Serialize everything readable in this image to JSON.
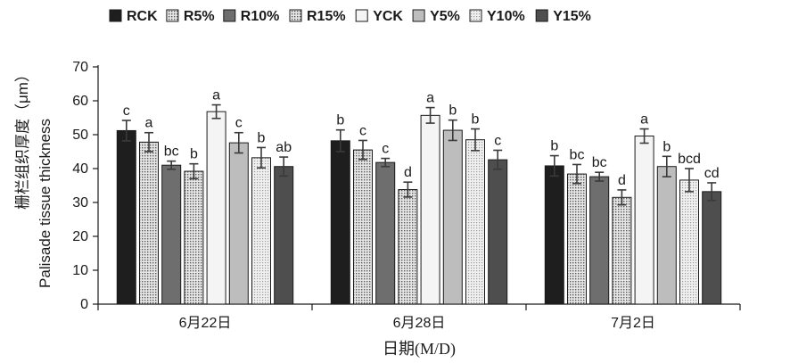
{
  "chart_data": {
    "type": "bar",
    "ylabel_cn": "栅栏组织厚度（μm）",
    "ylabel_en": "Palisade tissue thickness",
    "xlabel": "日期(M/D)",
    "categories": [
      "6月22日",
      "6月28日",
      "7月2日"
    ],
    "ylim": [
      0,
      70
    ],
    "yticks": [
      0,
      10,
      20,
      30,
      40,
      50,
      60,
      70
    ],
    "grid": false,
    "legend_position": "top",
    "series": [
      {
        "name": "RCK",
        "values": [
          51.2,
          48.2,
          40.8
        ],
        "errors": [
          3.0,
          3.2,
          3.0
        ],
        "letters": [
          "c",
          "b",
          "b"
        ],
        "fill": "#1e1e1e",
        "pattern": "solid"
      },
      {
        "name": "R5%",
        "values": [
          47.8,
          45.5,
          38.4
        ],
        "errors": [
          2.8,
          2.8,
          2.8
        ],
        "letters": [
          "a",
          "c",
          "bc"
        ],
        "fill": "#8a8a8a",
        "pattern": "dots"
      },
      {
        "name": "R10%",
        "values": [
          41.0,
          41.8,
          37.6
        ],
        "errors": [
          1.2,
          1.2,
          1.3
        ],
        "letters": [
          "bc",
          "c",
          "bc"
        ],
        "fill": "#6e6e6e",
        "pattern": "solid"
      },
      {
        "name": "R15%",
        "values": [
          39.2,
          33.8,
          31.5
        ],
        "errors": [
          2.2,
          2.2,
          2.2
        ],
        "letters": [
          "b",
          "d",
          "d"
        ],
        "fill": "#c4c4c4",
        "pattern": "dots"
      },
      {
        "name": "YCK",
        "values": [
          56.8,
          55.7,
          49.6
        ],
        "errors": [
          2.0,
          2.3,
          2.1
        ],
        "letters": [
          "a",
          "a",
          "a"
        ],
        "fill": "#f4f4f4",
        "pattern": "solid"
      },
      {
        "name": "Y5%",
        "values": [
          47.6,
          51.3,
          40.6
        ],
        "errors": [
          3.0,
          3.0,
          3.0
        ],
        "letters": [
          "c",
          "b",
          "b"
        ],
        "fill": "#bdbdbd",
        "pattern": "solid"
      },
      {
        "name": "Y10%",
        "values": [
          43.2,
          48.5,
          36.6
        ],
        "errors": [
          3.0,
          3.2,
          3.4
        ],
        "letters": [
          "b",
          "b",
          "bcd"
        ],
        "fill": "#d6d6d6",
        "pattern": "dots"
      },
      {
        "name": "Y15%",
        "values": [
          40.6,
          42.6,
          33.2
        ],
        "errors": [
          2.8,
          2.8,
          2.6
        ],
        "letters": [
          "ab",
          "c",
          "cd"
        ],
        "fill": "#4e4e4e",
        "pattern": "solid"
      }
    ]
  }
}
